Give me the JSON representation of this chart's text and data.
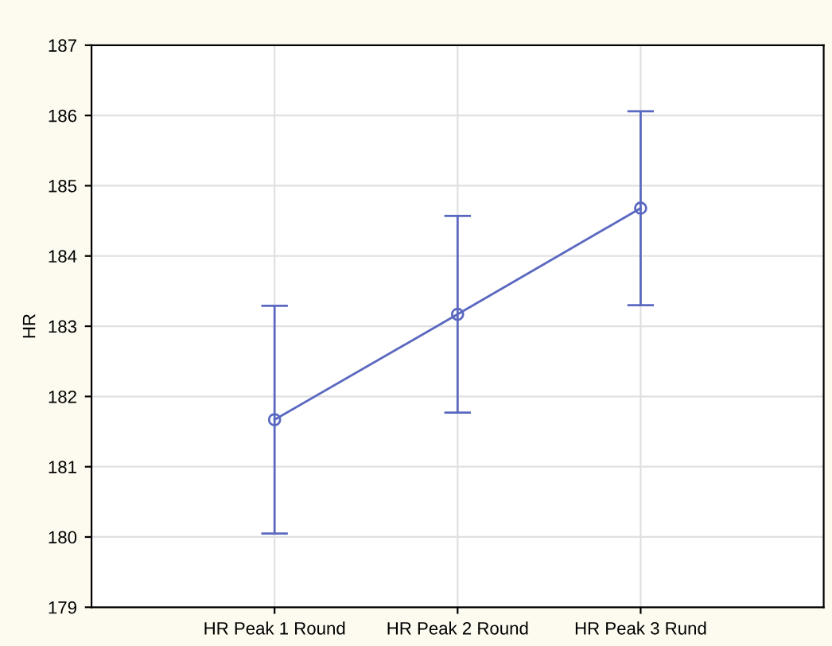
{
  "chart_data": {
    "type": "line",
    "ylabel": "HR",
    "categories": [
      "HR Peak 1 Round",
      "HR Peak 2 Round",
      "HR Peak 3 Rund"
    ],
    "series": [
      {
        "color": "#5a68c0",
        "values": [
          181.67,
          183.17,
          184.68
        ],
        "errors": [
          1.62,
          1.4,
          1.38
        ]
      }
    ],
    "ylim": [
      179,
      187
    ],
    "yticks": [
      179,
      180,
      181,
      182,
      183,
      184,
      185,
      186,
      187
    ],
    "grid": true,
    "marker": "circle",
    "line_style": "solid"
  }
}
